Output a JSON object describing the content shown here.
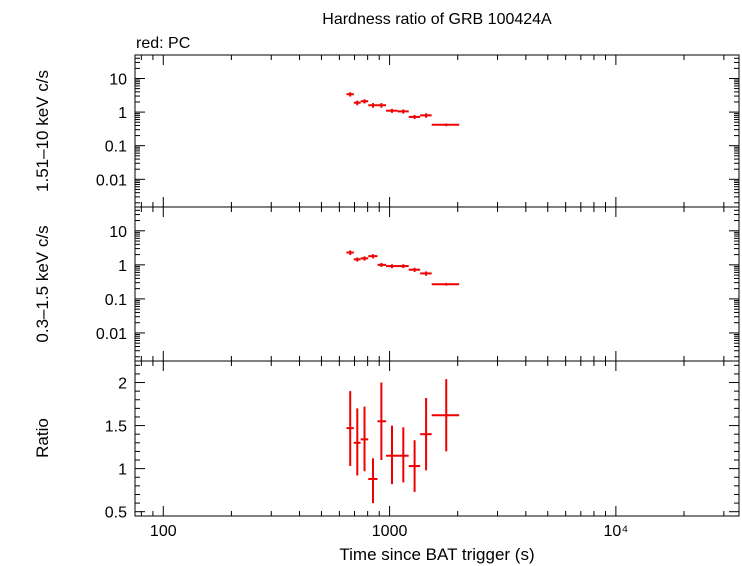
{
  "title": "Hardness ratio of GRB 100424A",
  "subtitle": "red: PC",
  "xlabel": "Time since BAT trigger (s)",
  "colors": {
    "series": "#ee0000",
    "axes": "#000000",
    "background": "#ffffff"
  },
  "chart_data": [
    {
      "type": "scatter",
      "panel": "hard",
      "ylabel": "1.51–10 keV c/s",
      "xscale": "log",
      "yscale": "log",
      "xlim": [
        75,
        35000
      ],
      "ylim": [
        0.0015,
        50
      ],
      "xticks": [
        100,
        1000,
        10000
      ],
      "xticklabels": [
        "100",
        "1000",
        "10⁴"
      ],
      "yticks": [
        0.01,
        0.1,
        1,
        10
      ],
      "yticklabels": [
        "0.01",
        "0.1",
        "1",
        "10"
      ],
      "series": [
        {
          "color": "#ee0000",
          "points": [
            {
              "x": 670,
              "x_lo": 645,
              "x_hi": 695,
              "y": 3.4,
              "y_lo": 2.9,
              "y_hi": 3.9
            },
            {
              "x": 720,
              "x_lo": 695,
              "x_hi": 745,
              "y": 1.9,
              "y_lo": 1.6,
              "y_hi": 2.2
            },
            {
              "x": 775,
              "x_lo": 745,
              "x_hi": 805,
              "y": 2.1,
              "y_lo": 1.8,
              "y_hi": 2.4
            },
            {
              "x": 845,
              "x_lo": 805,
              "x_hi": 885,
              "y": 1.6,
              "y_lo": 1.35,
              "y_hi": 1.85
            },
            {
              "x": 920,
              "x_lo": 885,
              "x_hi": 965,
              "y": 1.6,
              "y_lo": 1.35,
              "y_hi": 1.85
            },
            {
              "x": 1025,
              "x_lo": 965,
              "x_hi": 1085,
              "y": 1.1,
              "y_lo": 0.95,
              "y_hi": 1.25
            },
            {
              "x": 1150,
              "x_lo": 1085,
              "x_hi": 1215,
              "y": 1.05,
              "y_lo": 0.9,
              "y_hi": 1.2
            },
            {
              "x": 1290,
              "x_lo": 1215,
              "x_hi": 1365,
              "y": 0.72,
              "y_lo": 0.62,
              "y_hi": 0.82
            },
            {
              "x": 1450,
              "x_lo": 1365,
              "x_hi": 1535,
              "y": 0.8,
              "y_lo": 0.68,
              "y_hi": 0.92
            },
            {
              "x": 1780,
              "x_lo": 1535,
              "x_hi": 2030,
              "y": 0.42,
              "y_lo": 0.38,
              "y_hi": 0.46
            }
          ]
        }
      ]
    },
    {
      "type": "scatter",
      "panel": "soft",
      "ylabel": "0.3–1.5 keV c/s",
      "xscale": "log",
      "yscale": "log",
      "xlim": [
        75,
        35000
      ],
      "ylim": [
        0.0015,
        50
      ],
      "xticks": [
        100,
        1000,
        10000
      ],
      "xticklabels": [
        "100",
        "1000",
        "10⁴"
      ],
      "yticks": [
        0.01,
        0.1,
        1,
        10
      ],
      "yticklabels": [
        "0.01",
        "0.1",
        "1",
        "10"
      ],
      "series": [
        {
          "color": "#ee0000",
          "points": [
            {
              "x": 670,
              "x_lo": 645,
              "x_hi": 695,
              "y": 2.3,
              "y_lo": 1.95,
              "y_hi": 2.65
            },
            {
              "x": 720,
              "x_lo": 695,
              "x_hi": 745,
              "y": 1.45,
              "y_lo": 1.25,
              "y_hi": 1.65
            },
            {
              "x": 775,
              "x_lo": 745,
              "x_hi": 805,
              "y": 1.55,
              "y_lo": 1.33,
              "y_hi": 1.77
            },
            {
              "x": 845,
              "x_lo": 805,
              "x_hi": 885,
              "y": 1.8,
              "y_lo": 1.55,
              "y_hi": 2.05
            },
            {
              "x": 920,
              "x_lo": 885,
              "x_hi": 965,
              "y": 1.0,
              "y_lo": 0.87,
              "y_hi": 1.13
            },
            {
              "x": 1025,
              "x_lo": 965,
              "x_hi": 1085,
              "y": 0.92,
              "y_lo": 0.8,
              "y_hi": 1.04
            },
            {
              "x": 1150,
              "x_lo": 1085,
              "x_hi": 1215,
              "y": 0.92,
              "y_lo": 0.8,
              "y_hi": 1.04
            },
            {
              "x": 1290,
              "x_lo": 1215,
              "x_hi": 1365,
              "y": 0.72,
              "y_lo": 0.62,
              "y_hi": 0.82
            },
            {
              "x": 1450,
              "x_lo": 1365,
              "x_hi": 1535,
              "y": 0.56,
              "y_lo": 0.48,
              "y_hi": 0.64
            },
            {
              "x": 1780,
              "x_lo": 1535,
              "x_hi": 2030,
              "y": 0.27,
              "y_lo": 0.245,
              "y_hi": 0.295
            }
          ]
        }
      ]
    },
    {
      "type": "scatter",
      "panel": "ratio",
      "ylabel": "Ratio",
      "xscale": "log",
      "yscale": "linear",
      "xlim": [
        75,
        35000
      ],
      "ylim": [
        0.45,
        2.25
      ],
      "xticks": [
        100,
        1000,
        10000
      ],
      "xticklabels": [
        "100",
        "1000",
        "10⁴"
      ],
      "yticks": [
        0.5,
        1,
        1.5,
        2
      ],
      "yticklabels": [
        "0.5",
        "1",
        "1.5",
        "2"
      ],
      "series": [
        {
          "color": "#ee0000",
          "points": [
            {
              "x": 670,
              "x_lo": 645,
              "x_hi": 695,
              "y": 1.47,
              "y_lo": 1.03,
              "y_hi": 1.9
            },
            {
              "x": 720,
              "x_lo": 695,
              "x_hi": 745,
              "y": 1.3,
              "y_lo": 0.92,
              "y_hi": 1.7
            },
            {
              "x": 775,
              "x_lo": 745,
              "x_hi": 805,
              "y": 1.34,
              "y_lo": 0.97,
              "y_hi": 1.72
            },
            {
              "x": 845,
              "x_lo": 805,
              "x_hi": 885,
              "y": 0.88,
              "y_lo": 0.6,
              "y_hi": 1.12
            },
            {
              "x": 920,
              "x_lo": 885,
              "x_hi": 965,
              "y": 1.55,
              "y_lo": 1.1,
              "y_hi": 2.0
            },
            {
              "x": 1025,
              "x_lo": 965,
              "x_hi": 1085,
              "y": 1.15,
              "y_lo": 0.82,
              "y_hi": 1.5
            },
            {
              "x": 1150,
              "x_lo": 1085,
              "x_hi": 1215,
              "y": 1.15,
              "y_lo": 0.84,
              "y_hi": 1.48
            },
            {
              "x": 1290,
              "x_lo": 1215,
              "x_hi": 1365,
              "y": 1.03,
              "y_lo": 0.73,
              "y_hi": 1.33
            },
            {
              "x": 1450,
              "x_lo": 1365,
              "x_hi": 1535,
              "y": 1.4,
              "y_lo": 0.98,
              "y_hi": 1.82
            },
            {
              "x": 1780,
              "x_lo": 1535,
              "x_hi": 2030,
              "y": 1.62,
              "y_lo": 1.2,
              "y_hi": 2.04
            }
          ]
        }
      ]
    }
  ]
}
